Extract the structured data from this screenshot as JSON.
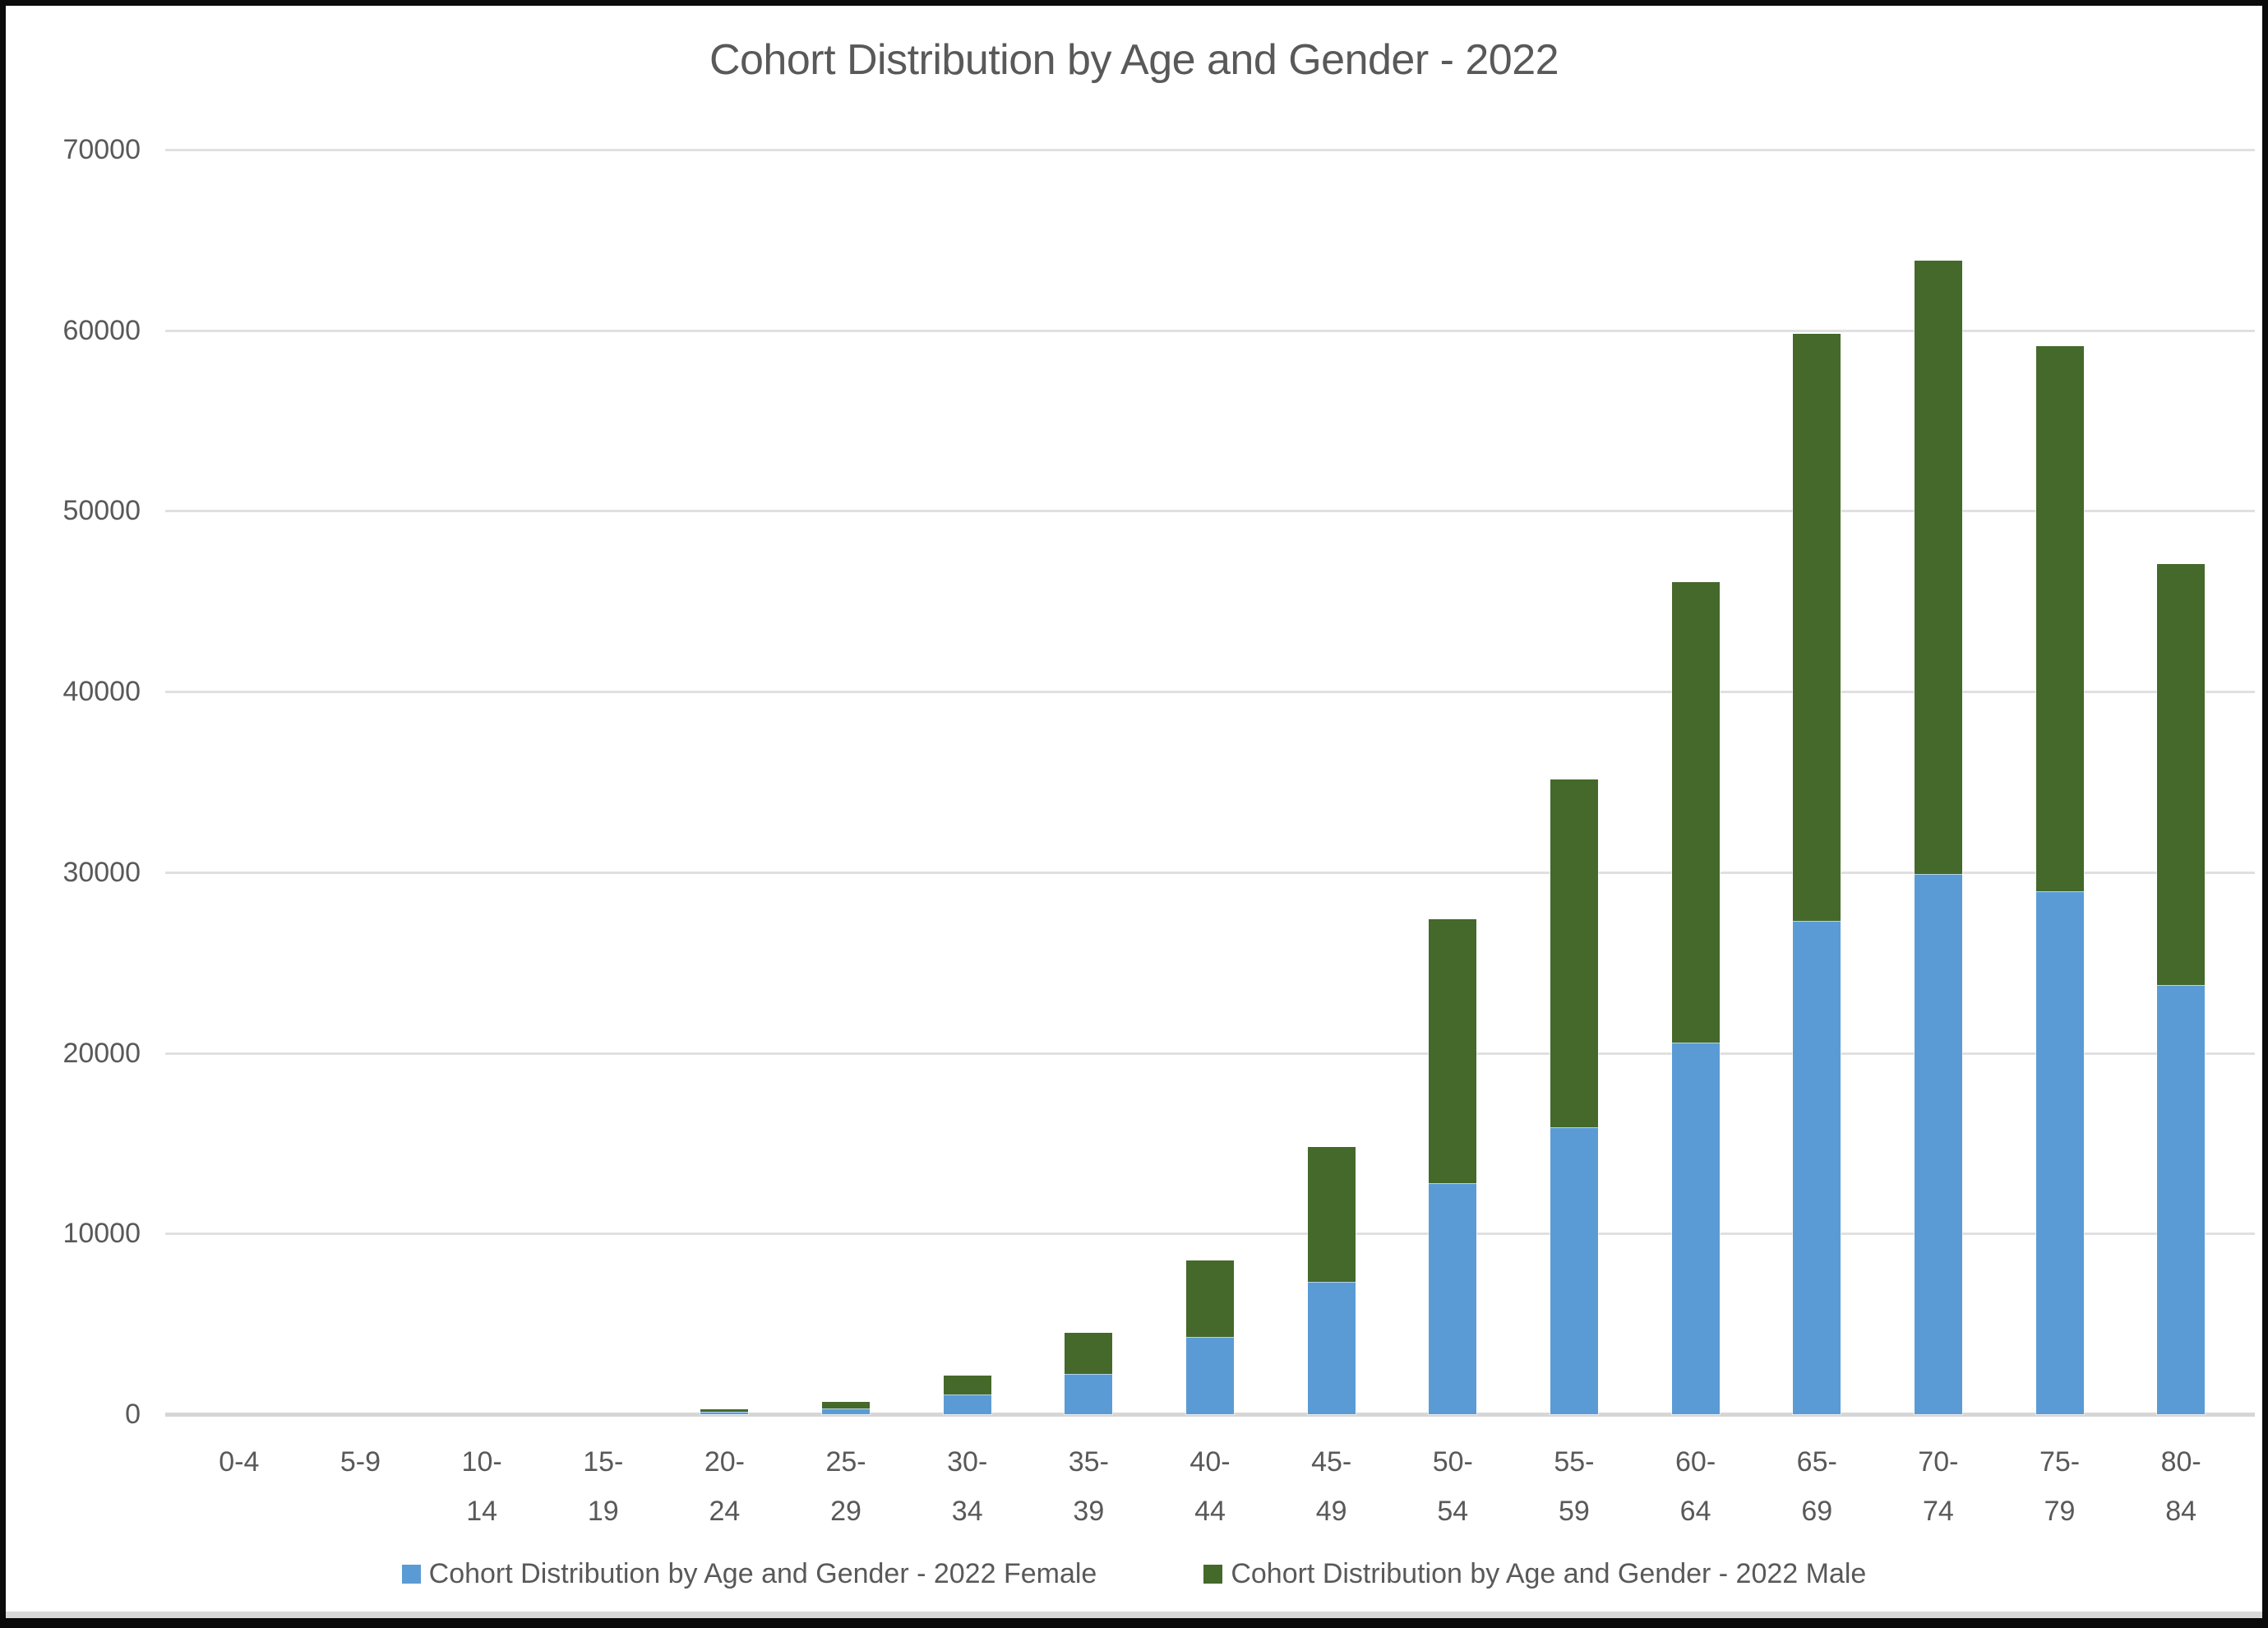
{
  "title": "Cohort Distribution by Age and Gender - 2022",
  "colors": {
    "female": "#5B9BD5",
    "male": "#44692A",
    "text": "#595959",
    "gridline": "#E0E0E0",
    "axis_line": "#D6D6D6",
    "background": "#FFFFFF",
    "frame": "#0B0B0B"
  },
  "chart_data": {
    "type": "bar",
    "stacked": true,
    "title": "Cohort Distribution by Age and Gender - 2022",
    "categories": [
      "0-4",
      "5-9",
      "10-14",
      "15-19",
      "20-24",
      "25-29",
      "30-34",
      "35-39",
      "40-44",
      "45-49",
      "50-54",
      "55-59",
      "60-64",
      "65-69",
      "70-74",
      "75-79",
      "80-84"
    ],
    "category_label_lines": [
      [
        "0-4"
      ],
      [
        "5-9"
      ],
      [
        "10-",
        "14"
      ],
      [
        "15-",
        "19"
      ],
      [
        "20-",
        "24"
      ],
      [
        "25-",
        "29"
      ],
      [
        "30-",
        "34"
      ],
      [
        "35-",
        "39"
      ],
      [
        "40-",
        "44"
      ],
      [
        "45-",
        "49"
      ],
      [
        "50-",
        "54"
      ],
      [
        "55-",
        "59"
      ],
      [
        "60-",
        "64"
      ],
      [
        "65-",
        "69"
      ],
      [
        "70-",
        "74"
      ],
      [
        "75-",
        "79"
      ],
      [
        "80-",
        "84"
      ]
    ],
    "series": [
      {
        "name": "Cohort Distribution by Age and Gender - 2022 Female",
        "color": "#5B9BD5",
        "values": [
          0,
          0,
          0,
          0,
          120,
          340,
          1100,
          2230,
          4280,
          7330,
          12810,
          15870,
          20570,
          27300,
          29900,
          28950,
          23750
        ]
      },
      {
        "name": "Cohort Distribution by Age and Gender - 2022 Male",
        "color": "#44692A",
        "values": [
          0,
          0,
          0,
          0,
          160,
          360,
          1050,
          2290,
          4230,
          7450,
          14570,
          19270,
          25480,
          32500,
          33950,
          30160,
          23300
        ]
      }
    ],
    "xlabel": "",
    "ylabel": "",
    "ylim": [
      0,
      70000
    ],
    "ytick_step": 10000,
    "ytick_labels": [
      "0",
      "10000",
      "20000",
      "30000",
      "40000",
      "50000",
      "60000",
      "70000"
    ],
    "grid": "horizontal",
    "legend_position": "bottom"
  }
}
